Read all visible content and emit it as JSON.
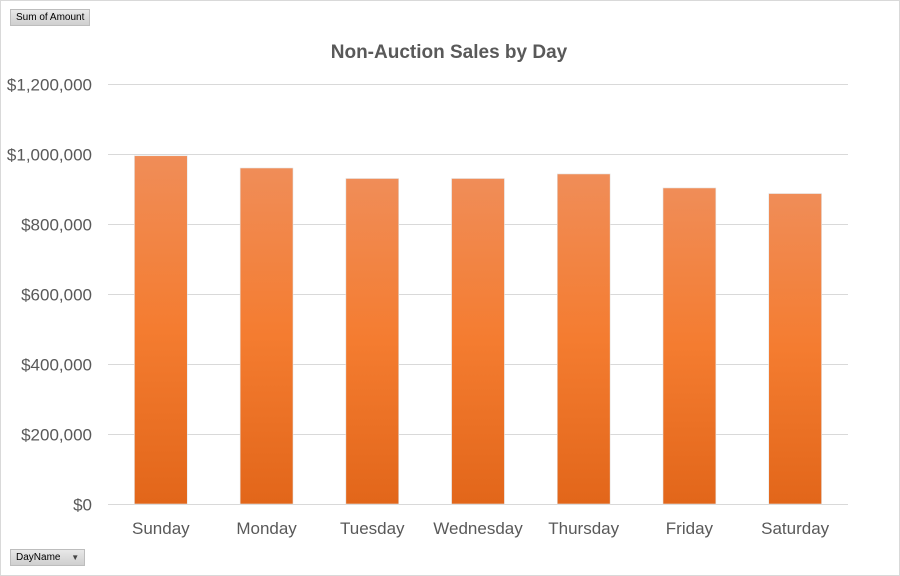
{
  "pivot": {
    "value_field": "Sum of Amount",
    "axis_field": "DayName"
  },
  "colors": {
    "bar_top": "#f08d58",
    "bar_mid": "#f47c30",
    "bar_bottom": "#e2661a",
    "gridline": "#d9d9d9",
    "text": "#595959"
  },
  "chart_data": {
    "type": "bar",
    "title": "Non-Auction Sales by Day",
    "xlabel": "",
    "ylabel": "",
    "categories": [
      "Sunday",
      "Monday",
      "Tuesday",
      "Wednesday",
      "Thursday",
      "Friday",
      "Saturday"
    ],
    "series": [
      {
        "values": [
          995000,
          960000,
          930000,
          930000,
          943000,
          903000,
          887000
        ]
      }
    ],
    "ylim": [
      0,
      1200000
    ],
    "yticks": [
      0,
      200000,
      400000,
      600000,
      800000,
      1000000,
      1200000
    ],
    "ytick_labels": [
      "$0",
      "$200,000",
      "$400,000",
      "$600,000",
      "$800,000",
      "$1,000,000",
      "$1,200,000"
    ],
    "grid": true,
    "legend": "none"
  }
}
